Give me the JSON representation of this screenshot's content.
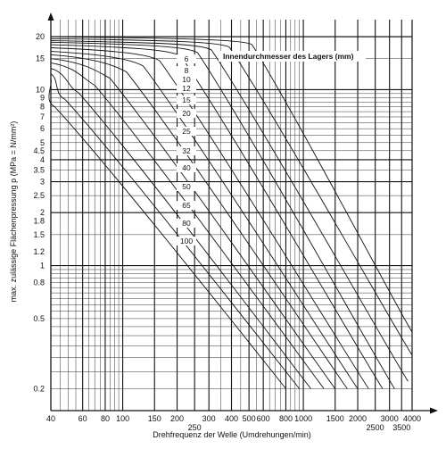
{
  "chart_data": {
    "type": "line",
    "title": "",
    "xlabel": "Drehfrequenz der Welle (Umdrehungen/min)",
    "ylabel": "max. zulässige Flächenpressung p (MPa = N/mm²)",
    "xscale": "log",
    "yscale": "log",
    "xlim": [
      40,
      4000
    ],
    "ylim": [
      0.15,
      25
    ],
    "grid": true,
    "x_ticks_row1": [
      "40",
      "60",
      "80",
      "100",
      "150",
      "200",
      "300",
      "400",
      "500",
      "600",
      "800",
      "1000",
      "1500",
      "2000",
      "3000",
      "4000"
    ],
    "x_ticks_row2": [
      "250",
      "2500",
      "3500"
    ],
    "y_ticks": [
      "20",
      "15",
      "10",
      "9",
      "8",
      "7",
      "6",
      "5",
      "4.5",
      "4",
      "3.5",
      "3",
      "2.5",
      "2",
      "1.8",
      "1.5",
      "1.2",
      "1",
      "0.8",
      "0.5",
      "0.2"
    ],
    "legend_title": "Innendurchmesser des Lagers (mm)",
    "series": [
      {
        "name": "6",
        "points": [
          [
            40,
            20
          ],
          [
            520,
            18
          ],
          [
            4000,
            0.42
          ]
        ]
      },
      {
        "name": "8",
        "points": [
          [
            40,
            19.5
          ],
          [
            390,
            17.4
          ],
          [
            4000,
            0.31
          ]
        ]
      },
      {
        "name": "10",
        "points": [
          [
            40,
            19
          ],
          [
            310,
            16.8
          ],
          [
            3800,
            0.22
          ]
        ]
      },
      {
        "name": "12",
        "points": [
          [
            40,
            18.6
          ],
          [
            260,
            16.2
          ],
          [
            3200,
            0.2
          ]
        ]
      },
      {
        "name": "15",
        "points": [
          [
            40,
            18
          ],
          [
            210,
            15.5
          ],
          [
            2750,
            0.2
          ]
        ]
      },
      {
        "name": "20",
        "points": [
          [
            40,
            17.3
          ],
          [
            160,
            14.6
          ],
          [
            2300,
            0.2
          ]
        ]
      },
      {
        "name": "25",
        "points": [
          [
            40,
            16.5
          ],
          [
            130,
            13.6
          ],
          [
            2000,
            0.2
          ]
        ]
      },
      {
        "name": "32",
        "points": [
          [
            40,
            15.8
          ],
          [
            105,
            12.6
          ],
          [
            1750,
            0.2
          ]
        ]
      },
      {
        "name": "40",
        "points": [
          [
            40,
            15
          ],
          [
            85,
            11.6
          ],
          [
            1500,
            0.2
          ]
        ]
      },
      {
        "name": "50",
        "points": [
          [
            40,
            14.2
          ],
          [
            70,
            10.6
          ],
          [
            1300,
            0.2
          ]
        ]
      },
      {
        "name": "65",
        "points": [
          [
            40,
            13.2
          ],
          [
            57,
            9.6
          ],
          [
            1100,
            0.2
          ]
        ]
      },
      {
        "name": "80",
        "points": [
          [
            40,
            12.3
          ],
          [
            48,
            8.8
          ],
          [
            950,
            0.2
          ]
        ]
      },
      {
        "name": "100",
        "points": [
          [
            40,
            11.5
          ],
          [
            42,
            8.0
          ],
          [
            800,
            0.2
          ]
        ]
      }
    ]
  }
}
